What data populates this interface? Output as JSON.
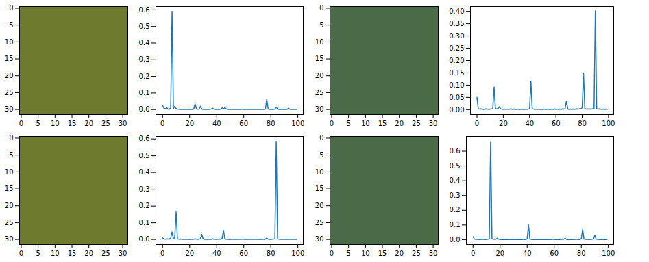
{
  "chart_data": [
    {
      "type": "image",
      "xlim": [
        -0.5,
        31.5
      ],
      "ylim": [
        -0.5,
        31.5
      ],
      "xticks": [
        0,
        5,
        10,
        15,
        20,
        25,
        30
      ],
      "yticks": [
        0,
        5,
        10,
        15,
        20,
        25,
        30
      ],
      "color": "#6e7a2e"
    },
    {
      "type": "line",
      "color": "#1f77b4",
      "xlim": [
        -4.95,
        103.95
      ],
      "xticks": [
        0,
        20,
        40,
        60,
        80,
        100
      ],
      "ylim": [
        -0.03,
        0.62
      ],
      "yticks": [
        {
          "value": 0,
          "label": "0.0"
        },
        {
          "value": 0.1,
          "label": "0.1"
        },
        {
          "value": 0.2,
          "label": "0.2"
        },
        {
          "value": 0.3,
          "label": "0.3"
        },
        {
          "value": 0.4,
          "label": "0.4"
        },
        {
          "value": 0.5,
          "label": "0.5"
        },
        {
          "value": 0.6,
          "label": "0.6"
        }
      ],
      "x": [
        0,
        1,
        2,
        3,
        4,
        5,
        6,
        7,
        8,
        9,
        10,
        11,
        12,
        13,
        14,
        15,
        16,
        17,
        18,
        19,
        20,
        21,
        22,
        23,
        24,
        25,
        26,
        27,
        28,
        29,
        30,
        31,
        32,
        33,
        34,
        35,
        36,
        37,
        38,
        39,
        40,
        41,
        42,
        43,
        44,
        45,
        46,
        47,
        48,
        49,
        50,
        51,
        52,
        53,
        54,
        55,
        56,
        57,
        58,
        59,
        60,
        61,
        62,
        63,
        64,
        65,
        66,
        67,
        68,
        69,
        70,
        71,
        72,
        73,
        74,
        75,
        76,
        77,
        78,
        79,
        80,
        81,
        82,
        83,
        84,
        85,
        86,
        87,
        88,
        89,
        90,
        91,
        92,
        93,
        94,
        95,
        96,
        97,
        98,
        99
      ],
      "values": [
        0.025,
        0.008,
        0.004,
        0.012,
        0.003,
        0.002,
        0.01,
        0.59,
        0.005,
        0.02,
        0.006,
        0.003,
        0.002,
        0.001,
        0.001,
        0.002,
        0.001,
        0.001,
        0.002,
        0.001,
        0.001,
        0.002,
        0.001,
        0.003,
        0.035,
        0.004,
        0.002,
        0.003,
        0.02,
        0.003,
        0.001,
        0.001,
        0.002,
        0.001,
        0.001,
        0.002,
        0.003,
        0.008,
        0.002,
        0.001,
        0.001,
        0.002,
        0.001,
        0.003,
        0.01,
        0.003,
        0.012,
        0.004,
        0.001,
        0.001,
        0.001,
        0.001,
        0.002,
        0.001,
        0.001,
        0.001,
        0.002,
        0.001,
        0.001,
        0.003,
        0.001,
        0.001,
        0.001,
        0.002,
        0.001,
        0.001,
        0.001,
        0.002,
        0.001,
        0.001,
        0.001,
        0.002,
        0.001,
        0.001,
        0.002,
        0.001,
        0.003,
        0.062,
        0.004,
        0.001,
        0.001,
        0.002,
        0.001,
        0.003,
        0.015,
        0.003,
        0.001,
        0.001,
        0.002,
        0.001,
        0.001,
        0.002,
        0.001,
        0.008,
        0.002,
        0.001,
        0.001,
        0.001,
        0.002,
        0.001
      ]
    },
    {
      "type": "image",
      "xlim": [
        -0.5,
        31.5
      ],
      "ylim": [
        -0.5,
        31.5
      ],
      "xticks": [
        0,
        5,
        10,
        15,
        20,
        25,
        30
      ],
      "yticks": [
        0,
        5,
        10,
        15,
        20,
        25,
        30
      ],
      "color": "#4a6a48"
    },
    {
      "type": "line",
      "color": "#1f77b4",
      "xlim": [
        -4.95,
        103.95
      ],
      "xticks": [
        0,
        20,
        40,
        60,
        80,
        100
      ],
      "ylim": [
        -0.02,
        0.42
      ],
      "yticks": [
        {
          "value": 0,
          "label": "0.00"
        },
        {
          "value": 0.05,
          "label": "0.05"
        },
        {
          "value": 0.1,
          "label": "0.10"
        },
        {
          "value": 0.15,
          "label": "0.15"
        },
        {
          "value": 0.2,
          "label": "0.20"
        },
        {
          "value": 0.25,
          "label": "0.25"
        },
        {
          "value": 0.3,
          "label": "0.30"
        },
        {
          "value": 0.35,
          "label": "0.35"
        },
        {
          "value": 0.4,
          "label": "0.40"
        }
      ],
      "x": [
        0,
        1,
        2,
        3,
        4,
        5,
        6,
        7,
        8,
        9,
        10,
        11,
        12,
        13,
        14,
        15,
        16,
        17,
        18,
        19,
        20,
        21,
        22,
        23,
        24,
        25,
        26,
        27,
        28,
        29,
        30,
        31,
        32,
        33,
        34,
        35,
        36,
        37,
        38,
        39,
        40,
        41,
        42,
        43,
        44,
        45,
        46,
        47,
        48,
        49,
        50,
        51,
        52,
        53,
        54,
        55,
        56,
        57,
        58,
        59,
        60,
        61,
        62,
        63,
        64,
        65,
        66,
        67,
        68,
        69,
        70,
        71,
        72,
        73,
        74,
        75,
        76,
        77,
        78,
        79,
        80,
        81,
        82,
        83,
        84,
        85,
        86,
        87,
        88,
        89,
        90,
        91,
        92,
        93,
        94,
        95,
        96,
        97,
        98,
        99
      ],
      "values": [
        0.05,
        0.004,
        0.002,
        0.003,
        0.002,
        0.001,
        0.002,
        0.003,
        0.002,
        0.001,
        0.002,
        0.003,
        0.004,
        0.092,
        0.005,
        0.003,
        0.004,
        0.012,
        0.003,
        0.002,
        0.001,
        0.002,
        0.001,
        0.002,
        0.001,
        0.002,
        0.003,
        0.001,
        0.002,
        0.001,
        0.001,
        0.002,
        0.001,
        0.001,
        0.002,
        0.001,
        0.001,
        0.002,
        0.001,
        0.002,
        0.004,
        0.116,
        0.004,
        0.002,
        0.001,
        0.002,
        0.001,
        0.002,
        0.001,
        0.001,
        0.001,
        0.002,
        0.001,
        0.001,
        0.002,
        0.001,
        0.001,
        0.002,
        0.001,
        0.003,
        0.001,
        0.002,
        0.001,
        0.002,
        0.001,
        0.003,
        0.002,
        0.004,
        0.035,
        0.003,
        0.001,
        0.002,
        0.001,
        0.002,
        0.001,
        0.002,
        0.003,
        0.002,
        0.004,
        0.003,
        0.008,
        0.15,
        0.005,
        0.002,
        0.003,
        0.002,
        0.003,
        0.002,
        0.004,
        0.005,
        0.402,
        0.004,
        0.002,
        0.003,
        0.002,
        0.001,
        0.002,
        0.001,
        0.002,
        0.001
      ]
    },
    {
      "type": "image",
      "xlim": [
        -0.5,
        31.5
      ],
      "ylim": [
        -0.5,
        31.5
      ],
      "xticks": [
        0,
        5,
        10,
        15,
        20,
        25,
        30
      ],
      "yticks": [
        0,
        5,
        10,
        15,
        20,
        25,
        30
      ],
      "color": "#6e7a2e"
    },
    {
      "type": "line",
      "color": "#1f77b4",
      "xlim": [
        -4.95,
        103.95
      ],
      "xticks": [
        0,
        20,
        40,
        60,
        80,
        100
      ],
      "ylim": [
        -0.03,
        0.615
      ],
      "yticks": [
        {
          "value": 0,
          "label": "0.0"
        },
        {
          "value": 0.1,
          "label": "0.1"
        },
        {
          "value": 0.2,
          "label": "0.2"
        },
        {
          "value": 0.3,
          "label": "0.3"
        },
        {
          "value": 0.4,
          "label": "0.4"
        },
        {
          "value": 0.5,
          "label": "0.5"
        },
        {
          "value": 0.6,
          "label": "0.6"
        }
      ],
      "x": [
        0,
        1,
        2,
        3,
        4,
        5,
        6,
        7,
        8,
        9,
        10,
        11,
        12,
        13,
        14,
        15,
        16,
        17,
        18,
        19,
        20,
        21,
        22,
        23,
        24,
        25,
        26,
        27,
        28,
        29,
        30,
        31,
        32,
        33,
        34,
        35,
        36,
        37,
        38,
        39,
        40,
        41,
        42,
        43,
        44,
        45,
        46,
        47,
        48,
        49,
        50,
        51,
        52,
        53,
        54,
        55,
        56,
        57,
        58,
        59,
        60,
        61,
        62,
        63,
        64,
        65,
        66,
        67,
        68,
        69,
        70,
        71,
        72,
        73,
        74,
        75,
        76,
        77,
        78,
        79,
        80,
        81,
        82,
        83,
        84,
        85,
        86,
        87,
        88,
        89,
        90,
        91,
        92,
        93,
        94,
        95,
        96,
        97,
        98,
        99
      ],
      "values": [
        0.01,
        0.003,
        0.002,
        0.004,
        0.003,
        0.002,
        0.008,
        0.045,
        0.004,
        0.012,
        0.165,
        0.004,
        0.002,
        0.003,
        0.002,
        0.001,
        0.002,
        0.001,
        0.002,
        0.001,
        0.001,
        0.002,
        0.001,
        0.002,
        0.004,
        0.002,
        0.001,
        0.003,
        0.005,
        0.03,
        0.003,
        0.001,
        0.002,
        0.001,
        0.001,
        0.002,
        0.001,
        0.004,
        0.002,
        0.001,
        0.001,
        0.002,
        0.003,
        0.002,
        0.006,
        0.055,
        0.004,
        0.002,
        0.001,
        0.001,
        0.001,
        0.001,
        0.002,
        0.001,
        0.001,
        0.001,
        0.002,
        0.001,
        0.001,
        0.003,
        0.001,
        0.001,
        0.001,
        0.002,
        0.001,
        0.001,
        0.001,
        0.002,
        0.001,
        0.001,
        0.001,
        0.002,
        0.001,
        0.001,
        0.002,
        0.001,
        0.002,
        0.01,
        0.002,
        0.001,
        0.001,
        0.002,
        0.003,
        0.004,
        0.585,
        0.004,
        0.002,
        0.001,
        0.002,
        0.001,
        0.001,
        0.002,
        0.001,
        0.002,
        0.001,
        0.001,
        0.002,
        0.001,
        0.001,
        0.001
      ]
    },
    {
      "type": "image",
      "xlim": [
        -0.5,
        31.5
      ],
      "ylim": [
        -0.5,
        31.5
      ],
      "xticks": [
        0,
        5,
        10,
        15,
        20,
        25,
        30
      ],
      "yticks": [
        0,
        5,
        10,
        15,
        20,
        25,
        30
      ],
      "color": "#4a6a48"
    },
    {
      "type": "line",
      "color": "#1f77b4",
      "xlim": [
        -4.95,
        103.95
      ],
      "xticks": [
        0,
        20,
        40,
        60,
        80,
        100
      ],
      "ylim": [
        -0.033,
        0.7
      ],
      "yticks": [
        {
          "value": 0,
          "label": "0.0"
        },
        {
          "value": 0.1,
          "label": "0.1"
        },
        {
          "value": 0.2,
          "label": "0.2"
        },
        {
          "value": 0.3,
          "label": "0.3"
        },
        {
          "value": 0.4,
          "label": "0.4"
        },
        {
          "value": 0.5,
          "label": "0.5"
        },
        {
          "value": 0.6,
          "label": "0.6"
        }
      ],
      "x": [
        0,
        1,
        2,
        3,
        4,
        5,
        6,
        7,
        8,
        9,
        10,
        11,
        12,
        13,
        14,
        15,
        16,
        17,
        18,
        19,
        20,
        21,
        22,
        23,
        24,
        25,
        26,
        27,
        28,
        29,
        30,
        31,
        32,
        33,
        34,
        35,
        36,
        37,
        38,
        39,
        40,
        41,
        42,
        43,
        44,
        45,
        46,
        47,
        48,
        49,
        50,
        51,
        52,
        53,
        54,
        55,
        56,
        57,
        58,
        59,
        60,
        61,
        62,
        63,
        64,
        65,
        66,
        67,
        68,
        69,
        70,
        71,
        72,
        73,
        74,
        75,
        76,
        77,
        78,
        79,
        80,
        81,
        82,
        83,
        84,
        85,
        86,
        87,
        88,
        89,
        90,
        91,
        92,
        93,
        94,
        95,
        96,
        97,
        98,
        99
      ],
      "values": [
        0.02,
        0.004,
        0.002,
        0.003,
        0.002,
        0.001,
        0.002,
        0.003,
        0.002,
        0.001,
        0.002,
        0.003,
        0.005,
        0.665,
        0.006,
        0.003,
        0.002,
        0.004,
        0.01,
        0.003,
        0.001,
        0.002,
        0.001,
        0.002,
        0.001,
        0.002,
        0.001,
        0.001,
        0.002,
        0.001,
        0.001,
        0.002,
        0.001,
        0.001,
        0.002,
        0.001,
        0.001,
        0.002,
        0.001,
        0.002,
        0.005,
        0.1,
        0.004,
        0.002,
        0.001,
        0.002,
        0.001,
        0.002,
        0.001,
        0.001,
        0.001,
        0.001,
        0.002,
        0.001,
        0.001,
        0.001,
        0.002,
        0.001,
        0.001,
        0.003,
        0.001,
        0.002,
        0.001,
        0.002,
        0.001,
        0.002,
        0.002,
        0.003,
        0.01,
        0.002,
        0.001,
        0.002,
        0.001,
        0.001,
        0.002,
        0.001,
        0.003,
        0.002,
        0.001,
        0.001,
        0.006,
        0.07,
        0.004,
        0.002,
        0.003,
        0.002,
        0.001,
        0.002,
        0.003,
        0.004,
        0.03,
        0.004,
        0.002,
        0.002,
        0.001,
        0.001,
        0.002,
        0.001,
        0.002,
        0.001
      ]
    }
  ]
}
